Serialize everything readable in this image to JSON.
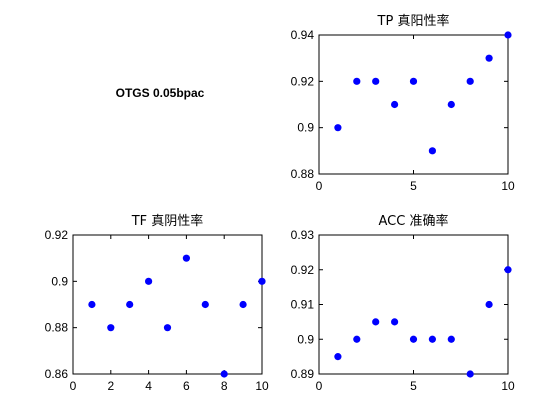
{
  "figure_label": "OTGS 0.05bpac",
  "marker_color": "#0000ff",
  "chart_data": [
    {
      "id": "tp",
      "type": "scatter",
      "title": "TP 真阳性率",
      "x": [
        1,
        2,
        3,
        4,
        5,
        6,
        7,
        8,
        9,
        10
      ],
      "values": [
        0.9,
        0.92,
        0.92,
        0.91,
        0.92,
        0.89,
        0.91,
        0.92,
        0.93,
        0.94
      ],
      "xlim": [
        0,
        10
      ],
      "ylim": [
        0.88,
        0.94
      ],
      "xticks": [
        0,
        5,
        10
      ],
      "yticks": [
        0.88,
        0.9,
        0.92,
        0.94
      ],
      "xticklabels": [
        "0",
        "5",
        "10"
      ],
      "yticklabels": [
        "0.88",
        "0.9",
        "0.92",
        "0.94"
      ],
      "grid": false
    },
    {
      "id": "tf",
      "type": "scatter",
      "title": "TF 真阴性率",
      "x": [
        1,
        2,
        3,
        4,
        5,
        6,
        7,
        8,
        9,
        10
      ],
      "values": [
        0.89,
        0.88,
        0.89,
        0.9,
        0.88,
        0.91,
        0.89,
        0.86,
        0.89,
        0.9
      ],
      "xlim": [
        0,
        10
      ],
      "ylim": [
        0.86,
        0.92
      ],
      "xticks": [
        0,
        2,
        4,
        6,
        8,
        10
      ],
      "yticks": [
        0.86,
        0.88,
        0.9,
        0.92
      ],
      "xticklabels": [
        "0",
        "2",
        "4",
        "6",
        "8",
        "10"
      ],
      "yticklabels": [
        "0.86",
        "0.88",
        "0.9",
        "0.92"
      ],
      "grid": false
    },
    {
      "id": "acc",
      "type": "scatter",
      "title": "ACC 准确率",
      "x": [
        1,
        2,
        3,
        4,
        5,
        6,
        7,
        8,
        9,
        10
      ],
      "values": [
        0.895,
        0.9,
        0.905,
        0.905,
        0.9,
        0.9,
        0.9,
        0.89,
        0.91,
        0.92
      ],
      "xlim": [
        0,
        10
      ],
      "ylim": [
        0.89,
        0.93
      ],
      "xticks": [
        0,
        5,
        10
      ],
      "yticks": [
        0.89,
        0.9,
        0.91,
        0.92,
        0.93
      ],
      "xticklabels": [
        "0",
        "5",
        "10"
      ],
      "yticklabels": [
        "0.89",
        "0.9",
        "0.91",
        "0.92",
        "0.93"
      ],
      "grid": false
    }
  ]
}
